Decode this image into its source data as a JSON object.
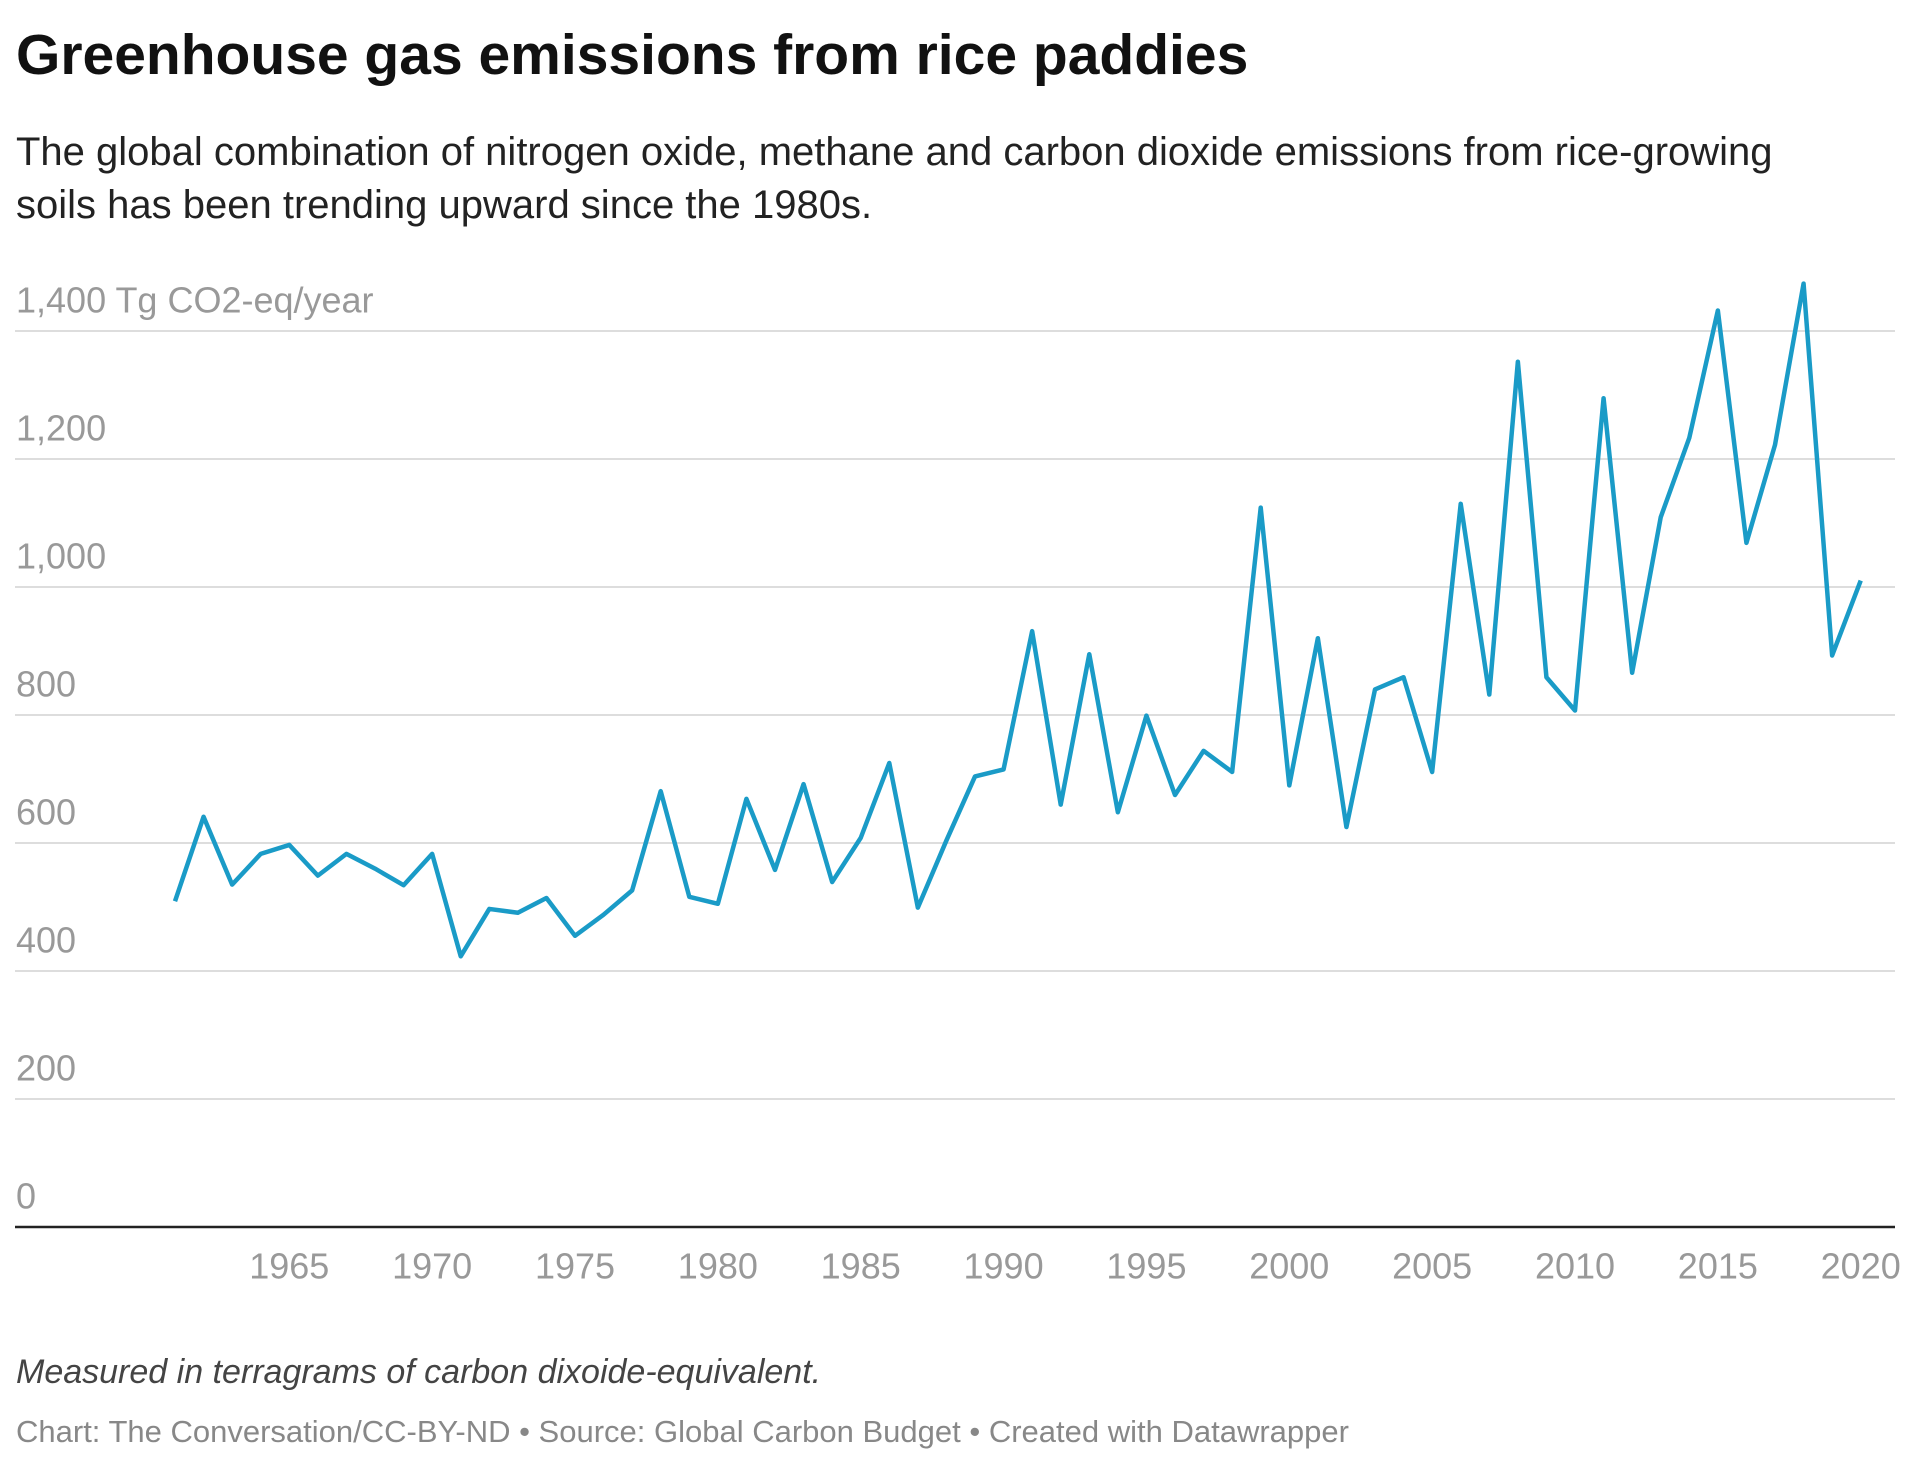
{
  "header": {
    "title": "Greenhouse gas emissions from rice paddies",
    "subtitle": "The global combination of nitrogen oxide, methane and carbon dioxide emissions from rice-growing soils has been trending upward since the 1980s."
  },
  "chart_data": {
    "type": "line",
    "x": [
      1961,
      1962,
      1963,
      1964,
      1965,
      1966,
      1967,
      1968,
      1969,
      1970,
      1971,
      1972,
      1973,
      1974,
      1975,
      1976,
      1977,
      1978,
      1979,
      1980,
      1981,
      1982,
      1983,
      1984,
      1985,
      1986,
      1987,
      1988,
      1989,
      1990,
      1991,
      1992,
      1993,
      1994,
      1995,
      1996,
      1997,
      1998,
      1999,
      2000,
      2001,
      2002,
      2003,
      2004,
      2005,
      2006,
      2007,
      2008,
      2009,
      2010,
      2011,
      2012,
      2013,
      2014,
      2015,
      2016,
      2017,
      2018,
      2019,
      2020
    ],
    "series": [
      {
        "color": "#1a9bc7",
        "values": [
          509,
          641,
          535,
          583,
          597,
          549,
          583,
          560,
          534,
          583,
          423,
          497,
          491,
          514,
          455,
          488,
          526,
          681,
          516,
          505,
          669,
          558,
          692,
          539,
          608,
          725,
          499,
          604,
          704,
          715,
          931,
          660,
          895,
          648,
          799,
          675,
          744,
          711,
          1124,
          690,
          920,
          625,
          840,
          859,
          711,
          1130,
          832,
          1352,
          859,
          807,
          1295,
          866,
          1109,
          1233,
          1432,
          1069,
          1222,
          1474,
          893,
          1010
        ]
      }
    ],
    "xlim": [
      1955.4,
      2021.2
    ],
    "xticks": [
      1965,
      1970,
      1975,
      1980,
      1985,
      1990,
      1995,
      2000,
      2005,
      2010,
      2015,
      2020
    ],
    "ylim": [
      0,
      1400
    ],
    "yticks": [
      0,
      200,
      400,
      600,
      800,
      {
        "value": 1000,
        "label": "1,000"
      },
      {
        "value": 1200,
        "label": "1,200"
      },
      {
        "value": 1400,
        "label": "1,400 Tg CO2-eq/year"
      }
    ],
    "grid": true
  },
  "footer": {
    "note": "Measured in terragrams of carbon dixoide-equivalent.",
    "credit": "Chart: The Conversation/CC-BY-ND • Source: Global Carbon Budget • Created with Datawrapper"
  }
}
